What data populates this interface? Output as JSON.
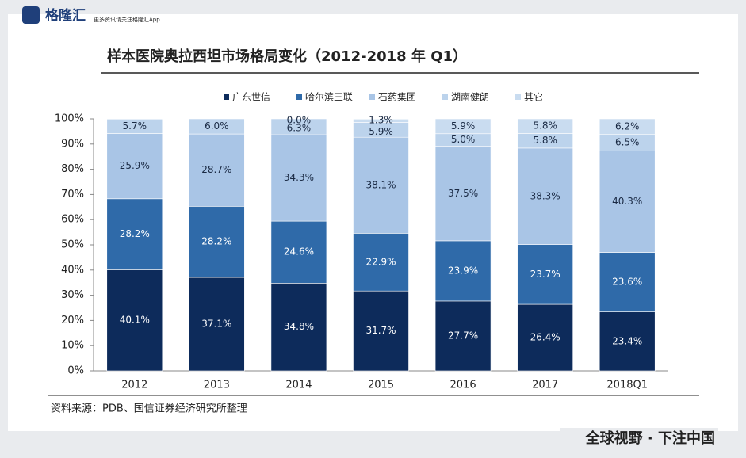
{
  "logo": "格隆汇",
  "tagline": "更多资讯请关注格隆汇App",
  "footer": "全球视野 · 下注中国",
  "chart_data": {
    "type": "stacked-bar",
    "title": "样本医院奥拉西坦市场格局变化（2012-2018 年 Q1）",
    "categories": [
      "2012",
      "2013",
      "2014",
      "2015",
      "2016",
      "2017",
      "2018Q1"
    ],
    "series": [
      {
        "name": "广东世信",
        "color": "#0d2b5b",
        "values": [
          40.1,
          37.1,
          34.8,
          31.7,
          27.7,
          26.4,
          23.4
        ],
        "value_labels": [
          "40.1%",
          "37.1%",
          "34.8%",
          "31.7%",
          "27.7%",
          "26.4%",
          "23.4%"
        ]
      },
      {
        "name": "哈尔滨三联",
        "color": "#2f6aa9",
        "values": [
          28.2,
          28.2,
          24.6,
          22.9,
          23.9,
          23.7,
          23.6
        ],
        "value_labels": [
          "28.2%",
          "28.2%",
          "24.6%",
          "22.9%",
          "23.9%",
          "23.7%",
          "23.6%"
        ]
      },
      {
        "name": "石药集团",
        "color": "#a9c5e6",
        "values": [
          25.9,
          28.7,
          34.3,
          38.1,
          37.5,
          38.3,
          40.3
        ],
        "value_labels": [
          "25.9%",
          "28.7%",
          "34.3%",
          "38.1%",
          "37.5%",
          "38.3%",
          "40.3%"
        ]
      },
      {
        "name": "湖南健朗",
        "color": "#bcd3ec",
        "values": [
          5.7,
          6.0,
          6.3,
          5.9,
          5.0,
          5.8,
          6.5
        ],
        "value_labels": [
          "5.7%",
          "6.0%",
          "6.3%",
          "5.9%",
          "5.0%",
          "5.8%",
          "6.5%"
        ]
      },
      {
        "name": "其它",
        "color": "#c9dcf0",
        "values": [
          null,
          null,
          0.0,
          1.3,
          5.9,
          5.8,
          6.2
        ],
        "value_labels": [
          null,
          null,
          "0.0%",
          "1.3%",
          "5.9%",
          "5.8%",
          "6.2%"
        ]
      }
    ],
    "ylim": [
      0,
      100
    ],
    "yticks": [
      {
        "value": 0,
        "label": "0%"
      },
      {
        "value": 10,
        "label": "10%"
      },
      {
        "value": 20,
        "label": "20%"
      },
      {
        "value": 30,
        "label": "30%"
      },
      {
        "value": 40,
        "label": "40%"
      },
      {
        "value": 50,
        "label": "50%"
      },
      {
        "value": 60,
        "label": "60%"
      },
      {
        "value": 70,
        "label": "70%"
      },
      {
        "value": 80,
        "label": "80%"
      },
      {
        "value": 90,
        "label": "90%"
      },
      {
        "value": 100,
        "label": "100%"
      }
    ],
    "grid": false,
    "source": "资料来源：PDB、国信证券经济研究所整理"
  }
}
